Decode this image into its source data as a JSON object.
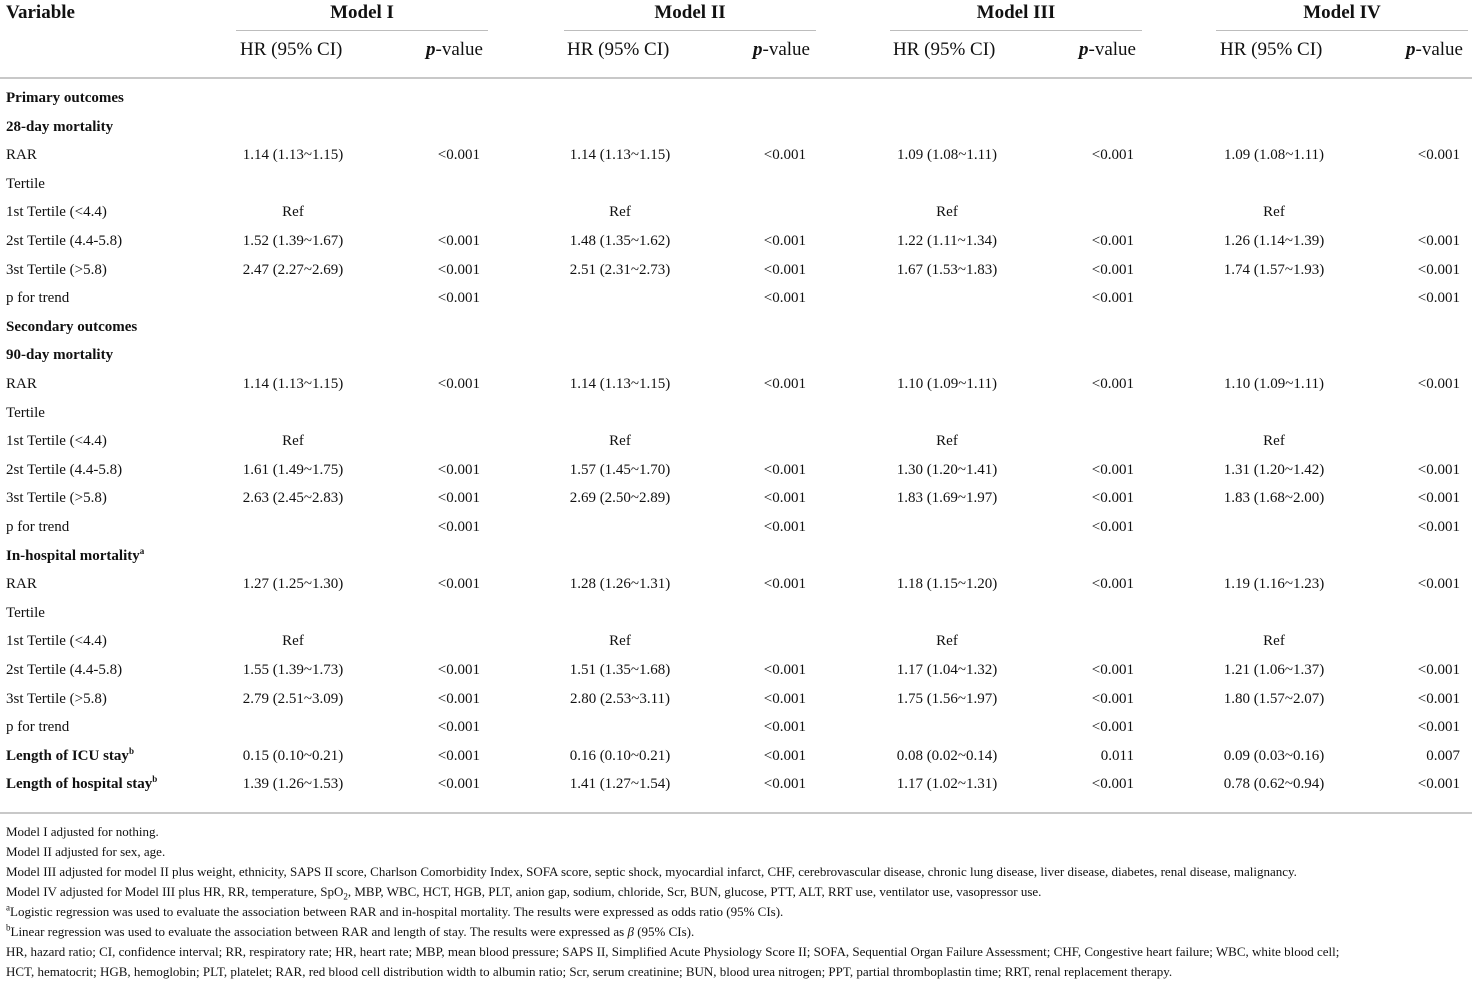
{
  "header": {
    "variable": "Variable",
    "models": [
      "Model I",
      "Model II",
      "Model III",
      "Model IV"
    ],
    "hr_label": "HR (95% CI)",
    "p_italic": "p",
    "p_rest": "-value"
  },
  "rows": [
    {
      "label": "Primary outcomes",
      "bold": true,
      "cells": []
    },
    {
      "label": "28-day mortality",
      "bold": true,
      "cells": []
    },
    {
      "label": "RAR",
      "cells": [
        [
          "1.14 (1.13~1.15)",
          "<0.001"
        ],
        [
          "1.14 (1.13~1.15)",
          "<0.001"
        ],
        [
          "1.09 (1.08~1.11)",
          "<0.001"
        ],
        [
          "1.09 (1.08~1.11)",
          "<0.001"
        ]
      ]
    },
    {
      "label": "Tertile",
      "cells": []
    },
    {
      "label": "1st Tertile (<4.4)",
      "cells": [
        [
          "Ref",
          ""
        ],
        [
          "Ref",
          ""
        ],
        [
          "Ref",
          ""
        ],
        [
          "Ref",
          ""
        ]
      ]
    },
    {
      "label": "2st Tertile (4.4-5.8)",
      "cells": [
        [
          "1.52 (1.39~1.67)",
          "<0.001"
        ],
        [
          "1.48 (1.35~1.62)",
          "<0.001"
        ],
        [
          "1.22 (1.11~1.34)",
          "<0.001"
        ],
        [
          "1.26 (1.14~1.39)",
          "<0.001"
        ]
      ]
    },
    {
      "label": "3st Tertile (>5.8)",
      "cells": [
        [
          "2.47 (2.27~2.69)",
          "<0.001"
        ],
        [
          "2.51 (2.31~2.73)",
          "<0.001"
        ],
        [
          "1.67 (1.53~1.83)",
          "<0.001"
        ],
        [
          "1.74 (1.57~1.93)",
          "<0.001"
        ]
      ]
    },
    {
      "label": "p for trend",
      "cells": [
        [
          "",
          "<0.001"
        ],
        [
          "",
          "<0.001"
        ],
        [
          "",
          "<0.001"
        ],
        [
          "",
          "<0.001"
        ]
      ]
    },
    {
      "label": "Secondary outcomes",
      "bold": true,
      "cells": []
    },
    {
      "label": "90-day mortality",
      "bold": true,
      "cells": []
    },
    {
      "label": "RAR",
      "cells": [
        [
          "1.14 (1.13~1.15)",
          "<0.001"
        ],
        [
          "1.14 (1.13~1.15)",
          "<0.001"
        ],
        [
          "1.10 (1.09~1.11)",
          "<0.001"
        ],
        [
          "1.10 (1.09~1.11)",
          "<0.001"
        ]
      ]
    },
    {
      "label": "Tertile",
      "cells": []
    },
    {
      "label": "1st Tertile (<4.4)",
      "cells": [
        [
          "Ref",
          ""
        ],
        [
          "Ref",
          ""
        ],
        [
          "Ref",
          ""
        ],
        [
          "Ref",
          ""
        ]
      ]
    },
    {
      "label": "2st Tertile (4.4-5.8)",
      "cells": [
        [
          "1.61 (1.49~1.75)",
          "<0.001"
        ],
        [
          "1.57 (1.45~1.70)",
          "<0.001"
        ],
        [
          "1.30 (1.20~1.41)",
          "<0.001"
        ],
        [
          "1.31 (1.20~1.42)",
          "<0.001"
        ]
      ]
    },
    {
      "label": "3st Tertile (>5.8)",
      "cells": [
        [
          "2.63 (2.45~2.83)",
          "<0.001"
        ],
        [
          "2.69 (2.50~2.89)",
          "<0.001"
        ],
        [
          "1.83 (1.69~1.97)",
          "<0.001"
        ],
        [
          "1.83 (1.68~2.00)",
          "<0.001"
        ]
      ]
    },
    {
      "label": "p for trend",
      "cells": [
        [
          "",
          "<0.001"
        ],
        [
          "",
          "<0.001"
        ],
        [
          "",
          "<0.001"
        ],
        [
          "",
          "<0.001"
        ]
      ]
    },
    {
      "label": "In-hospital mortality",
      "sup": "a",
      "bold": true,
      "cells": []
    },
    {
      "label": "RAR",
      "cells": [
        [
          "1.27 (1.25~1.30)",
          "<0.001"
        ],
        [
          "1.28 (1.26~1.31)",
          "<0.001"
        ],
        [
          "1.18 (1.15~1.20)",
          "<0.001"
        ],
        [
          "1.19 (1.16~1.23)",
          "<0.001"
        ]
      ]
    },
    {
      "label": "Tertile",
      "cells": []
    },
    {
      "label": "1st Tertile (<4.4)",
      "cells": [
        [
          "Ref",
          ""
        ],
        [
          "Ref",
          ""
        ],
        [
          "Ref",
          ""
        ],
        [
          "Ref",
          ""
        ]
      ]
    },
    {
      "label": "2st Tertile (4.4-5.8)",
      "cells": [
        [
          "1.55 (1.39~1.73)",
          "<0.001"
        ],
        [
          "1.51 (1.35~1.68)",
          "<0.001"
        ],
        [
          "1.17 (1.04~1.32)",
          "<0.001"
        ],
        [
          "1.21 (1.06~1.37)",
          "<0.001"
        ]
      ]
    },
    {
      "label": "3st Tertile (>5.8)",
      "cells": [
        [
          "2.79 (2.51~3.09)",
          "<0.001"
        ],
        [
          "2.80 (2.53~3.11)",
          "<0.001"
        ],
        [
          "1.75 (1.56~1.97)",
          "<0.001"
        ],
        [
          "1.80 (1.57~2.07)",
          "<0.001"
        ]
      ]
    },
    {
      "label": "p for trend",
      "cells": [
        [
          "",
          "<0.001"
        ],
        [
          "",
          "<0.001"
        ],
        [
          "",
          "<0.001"
        ],
        [
          "",
          "<0.001"
        ]
      ]
    },
    {
      "label": "Length of ICU stay",
      "sup": "b",
      "bold": true,
      "cells": [
        [
          "0.15 (0.10~0.21)",
          "<0.001"
        ],
        [
          "0.16 (0.10~0.21)",
          "<0.001"
        ],
        [
          "0.08 (0.02~0.14)",
          "0.011"
        ],
        [
          "0.09 (0.03~0.16)",
          "0.007"
        ]
      ]
    },
    {
      "label": "Length of hospital stay",
      "sup": "b",
      "bold": true,
      "cells": [
        [
          "1.39 (1.26~1.53)",
          "<0.001"
        ],
        [
          "1.41 (1.27~1.54)",
          "<0.001"
        ],
        [
          "1.17 (1.02~1.31)",
          "<0.001"
        ],
        [
          "0.78 (0.62~0.94)",
          "<0.001"
        ]
      ]
    }
  ],
  "notes": {
    "model1": "Model I adjusted for nothing.",
    "model2": "Model II adjusted for sex, age.",
    "model3": "Model III adjusted for model II plus weight, ethnicity, SAPS II score, Charlson Comorbidity Index, SOFA score, septic shock, myocardial infarct, CHF, cerebrovascular disease, chronic lung disease, liver disease, diabetes, renal disease, malignancy.",
    "model4_a": "Model IV adjusted for Model III plus HR, RR, temperature, SpO",
    "model4_sub": "2",
    "model4_b": ", MBP, WBC, HCT, HGB, PLT, anion gap, sodium, chloride, Scr, BUN, glucose, PTT, ALT, RRT use, ventilator use, vasopressor use.",
    "fa_mark": "a",
    "fa_text": "Logistic regression was used to evaluate the association between RAR and in-hospital mortality. The results were expressed as odds ratio (95% CIs).",
    "fb_mark": "b",
    "fb_text_a": "Linear regression was used to evaluate the association between RAR and length of stay. The results were expressed as ",
    "fb_beta": "β",
    "fb_text_b": " (95% CIs).",
    "abbrev1": "HR, hazard ratio; CI, confidence interval; RR, respiratory rate; HR, heart rate; MBP, mean blood pressure; SAPS II, Simplified Acute Physiology Score II; SOFA, Sequential Organ Failure Assessment; CHF, Congestive heart failure; WBC, white blood cell;",
    "abbrev2": "HCT, hematocrit; HGB, hemoglobin; PLT, platelet; RAR, red blood cell distribution width to albumin ratio; Scr, serum creatinine; BUN, blood urea nitrogen; PPT, partial thromboplastin time; RRT, renal replacement therapy."
  }
}
